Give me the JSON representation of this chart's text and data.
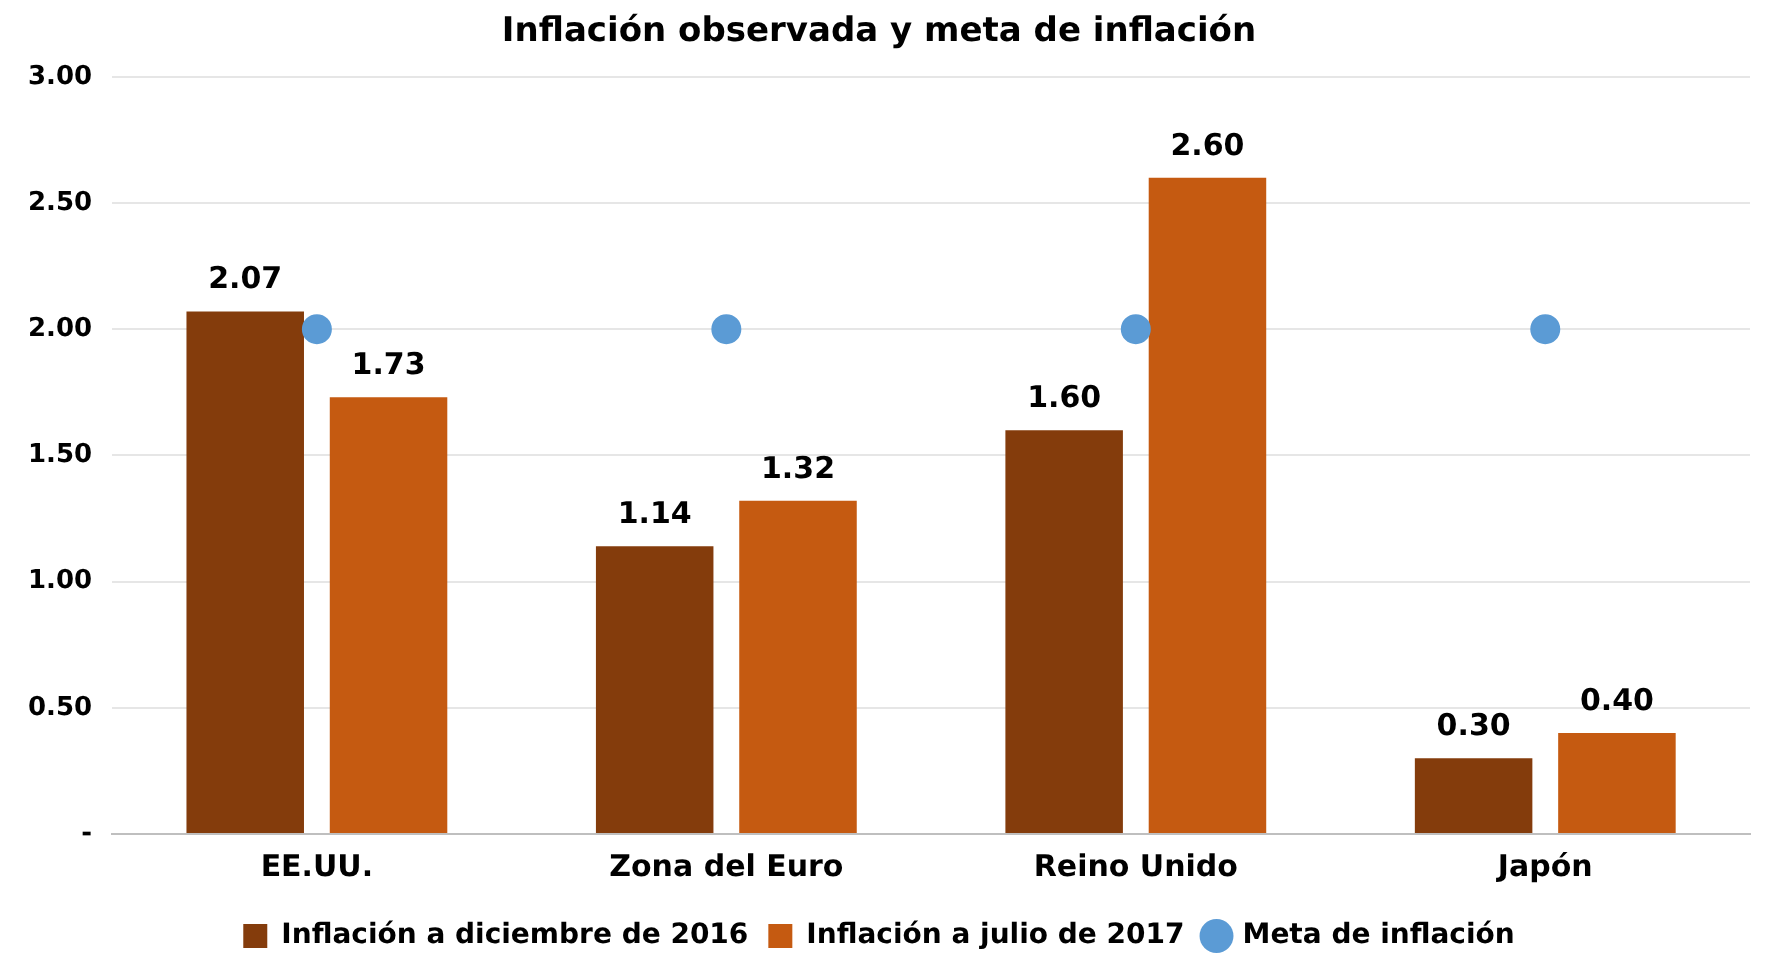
{
  "chart_data": {
    "type": "bar",
    "title": "Inflación observada y meta de inflación",
    "categories": [
      "EE.UU.",
      "Zona del Euro",
      "Reino Unido",
      "Japón"
    ],
    "series": [
      {
        "name": "Inflación a diciembre de 2016",
        "color": "#843c0c",
        "values": [
          2.07,
          1.14,
          1.6,
          0.3
        ],
        "value_labels": [
          "2.07",
          "1.14",
          "1.60",
          "0.30"
        ]
      },
      {
        "name": "Inflación a julio de 2017",
        "color": "#c55a11",
        "values": [
          1.73,
          1.32,
          2.6,
          0.4
        ],
        "value_labels": [
          "1.73",
          "1.32",
          "2.60",
          "0.40"
        ]
      },
      {
        "name": "Meta de inflación",
        "type": "scatter",
        "color": "#5b9bd5",
        "x": [
          "EE.UU.",
          "Zona del Euro",
          "Reino Unido",
          "Japón"
        ],
        "values": [
          2,
          2,
          2,
          2
        ]
      }
    ],
    "ylim": [
      0,
      3
    ],
    "yticks": [
      {
        "value": 0,
        "label": "-"
      },
      {
        "value": 0.5,
        "label": "0.50"
      },
      {
        "value": 1,
        "label": "1.00"
      },
      {
        "value": 1.5,
        "label": "1.50"
      },
      {
        "value": 2,
        "label": "2.00"
      },
      {
        "value": 2.5,
        "label": "2.50"
      },
      {
        "value": 3,
        "label": "3.00"
      }
    ],
    "grid": "y",
    "legend": "bottom",
    "marker": "circle"
  }
}
